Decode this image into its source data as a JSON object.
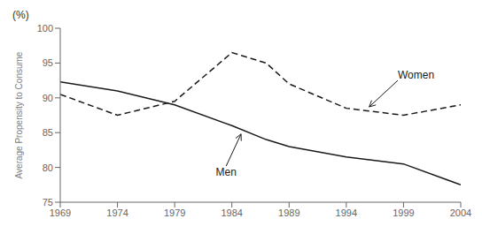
{
  "chart_data": {
    "type": "line",
    "x": [
      1969,
      1974,
      1979,
      1984,
      1987,
      1989,
      1994,
      1999,
      2004
    ],
    "series": [
      {
        "name": "Men",
        "color": "#1a1a1a",
        "line_style": "solid",
        "values": [
          92.3,
          91.0,
          89.0,
          86.0,
          84.0,
          83.0,
          81.5,
          80.5,
          77.5
        ]
      },
      {
        "name": "Women",
        "color": "#1a1a1a",
        "line_style": "dashed",
        "values": [
          90.5,
          87.5,
          89.5,
          96.5,
          95.0,
          92.0,
          88.5,
          87.5,
          89.0
        ]
      }
    ],
    "xlim": [
      1969,
      2004
    ],
    "xticks": [
      1969,
      1974,
      1979,
      1984,
      1989,
      1994,
      1999,
      2004
    ],
    "ylim": [
      75,
      100
    ],
    "yticks": [
      75,
      80,
      85,
      90,
      95,
      100
    ],
    "ylabel": "Average Propensity to Consume",
    "grid": false,
    "annotations": [
      {
        "text": "(%)"
      },
      {
        "text": "Men",
        "x": 1984.8,
        "y": 84.8,
        "text_x": 1983.5,
        "text_y": 80.2
      },
      {
        "text": "Women",
        "x": 1996.0,
        "y": 88.7,
        "text_x": 1998.5,
        "text_y": 92.5
      }
    ]
  }
}
